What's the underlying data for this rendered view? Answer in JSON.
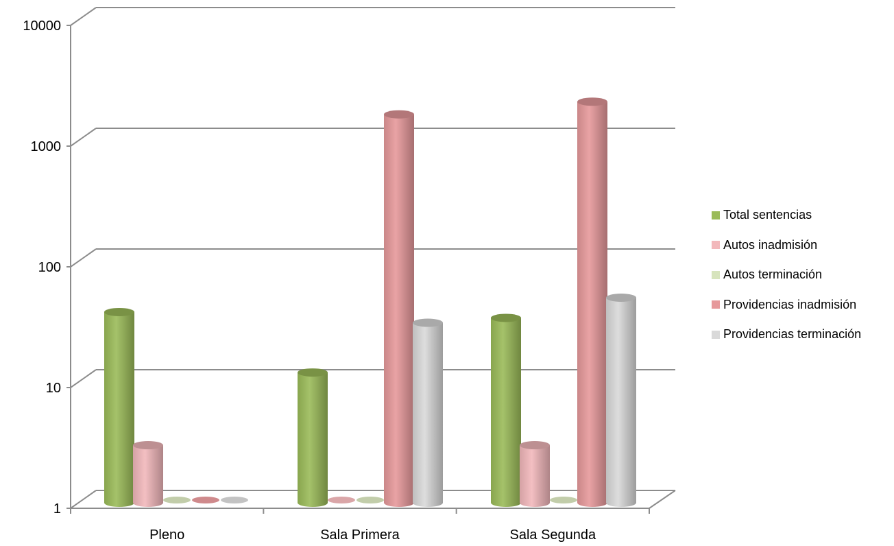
{
  "chart_data": {
    "type": "bar",
    "title": "",
    "xlabel": "",
    "ylabel": "",
    "y_scale": "log",
    "ylim": [
      1,
      10000
    ],
    "y_ticks": [
      "1",
      "10",
      "100",
      "1000",
      "10000"
    ],
    "grid": true,
    "legend_position": "right",
    "categories": [
      "Pleno",
      "Sala Primera",
      "Sala Segunda"
    ],
    "series": [
      {
        "name": "Total sentencias",
        "color": "#9bbb59",
        "values": [
          38,
          12,
          34
        ]
      },
      {
        "name": "Autos inadmisión",
        "color": "#f2b8bb",
        "values": [
          3,
          0,
          3
        ]
      },
      {
        "name": "Autos terminación",
        "color": "#d7e4bd",
        "values": [
          0,
          0,
          0
        ]
      },
      {
        "name": "Providencias inadmisión",
        "color": "#e6999b",
        "values": [
          0,
          1650,
          2100
        ]
      },
      {
        "name": "Providencias terminación",
        "color": "#d9d9d9",
        "values": [
          0,
          31,
          50
        ]
      }
    ]
  }
}
